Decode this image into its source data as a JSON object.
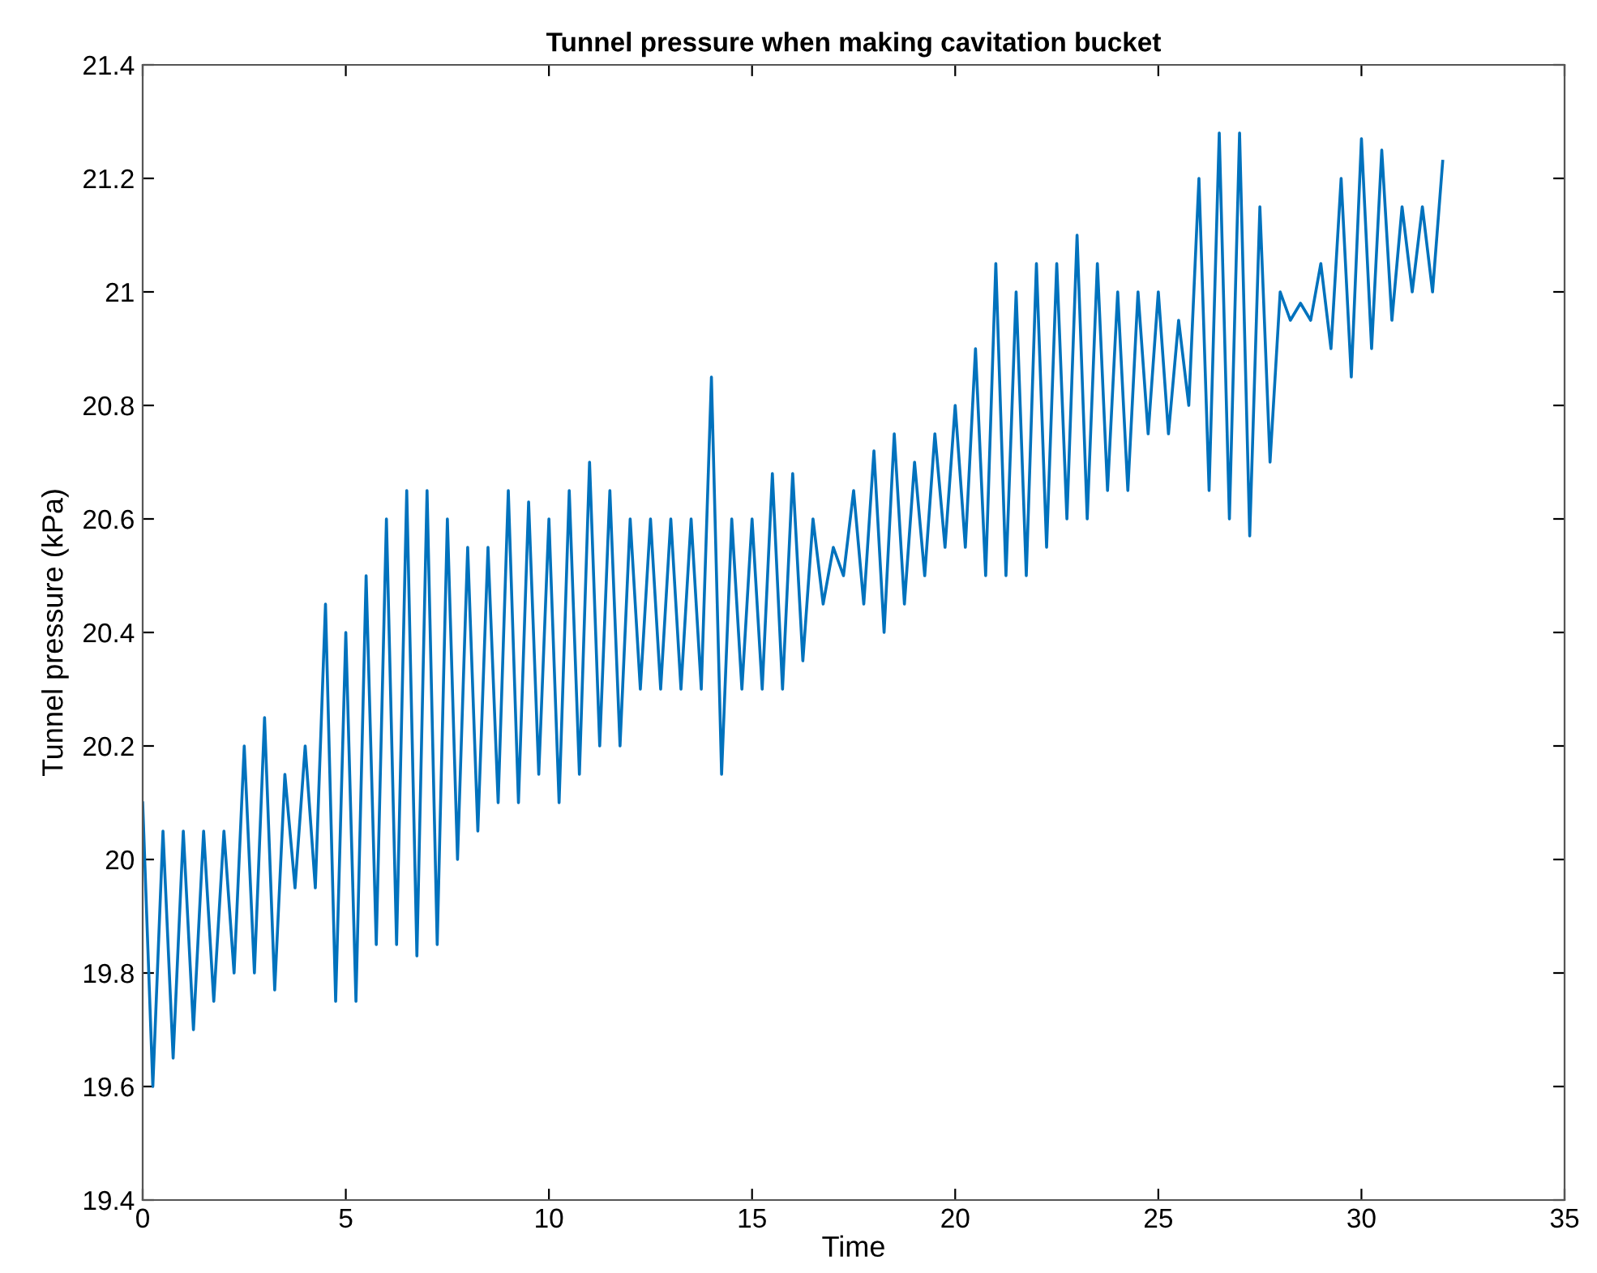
{
  "chart_data": {
    "type": "line",
    "title": "Tunnel pressure when making cavitation bucket",
    "xlabel": "Time",
    "ylabel": "Tunnel pressure (kPa)",
    "xlim": [
      0,
      35
    ],
    "xticks": [
      0,
      5,
      10,
      15,
      20,
      25,
      30,
      35
    ],
    "ylim": [
      19.4,
      21.4
    ],
    "yticks": [
      19.4,
      19.6,
      19.8,
      20,
      20.2,
      20.4,
      20.6,
      20.8,
      21,
      21.2,
      21.4
    ],
    "grid": false,
    "marker": "none",
    "line_style": "solid",
    "series": [
      {
        "color": "#0072bd",
        "x": [
          0,
          0.25,
          0.5,
          0.75,
          1,
          1.25,
          1.5,
          1.75,
          2,
          2.25,
          2.5,
          2.75,
          3,
          3.25,
          3.5,
          3.75,
          4,
          4.25,
          4.5,
          4.75,
          5,
          5.25,
          5.5,
          5.75,
          6,
          6.25,
          6.5,
          6.75,
          7,
          7.25,
          7.5,
          7.75,
          8,
          8.25,
          8.5,
          8.75,
          9,
          9.25,
          9.5,
          9.75,
          10,
          10.25,
          10.5,
          10.75,
          11,
          11.25,
          11.5,
          11.75,
          12,
          12.25,
          12.5,
          12.75,
          13,
          13.25,
          13.5,
          13.75,
          14,
          14.25,
          14.5,
          14.75,
          15,
          15.25,
          15.5,
          15.75,
          16,
          16.25,
          16.5,
          16.75,
          17,
          17.25,
          17.5,
          17.75,
          18,
          18.25,
          18.5,
          18.75,
          19,
          19.25,
          19.5,
          19.75,
          20,
          20.25,
          20.5,
          20.75,
          21,
          21.25,
          21.5,
          21.75,
          22,
          22.25,
          22.5,
          22.75,
          23,
          23.25,
          23.5,
          23.75,
          24,
          24.25,
          24.5,
          24.75,
          25,
          25.25,
          25.5,
          25.75,
          26,
          26.25,
          26.5,
          26.75,
          27,
          27.25,
          27.5,
          27.75,
          28,
          28.25,
          28.5,
          28.75,
          29,
          29.25,
          29.5,
          29.75,
          30,
          30.25,
          30.5,
          30.75,
          31,
          31.25,
          31.5,
          31.75,
          32
        ],
        "values": [
          20.1,
          19.6,
          20.05,
          19.65,
          20.05,
          19.7,
          20.05,
          19.75,
          20.05,
          19.8,
          20.2,
          19.8,
          20.25,
          19.77,
          20.15,
          19.95,
          20.2,
          19.95,
          20.45,
          19.75,
          20.4,
          19.75,
          20.5,
          19.85,
          20.6,
          19.85,
          20.65,
          19.83,
          20.65,
          19.85,
          20.6,
          20.0,
          20.55,
          20.05,
          20.55,
          20.1,
          20.65,
          20.1,
          20.63,
          20.15,
          20.6,
          20.1,
          20.65,
          20.15,
          20.7,
          20.2,
          20.65,
          20.2,
          20.6,
          20.3,
          20.6,
          20.3,
          20.6,
          20.3,
          20.6,
          20.3,
          20.85,
          20.15,
          20.6,
          20.3,
          20.6,
          20.3,
          20.68,
          20.3,
          20.68,
          20.35,
          20.6,
          20.45,
          20.55,
          20.5,
          20.65,
          20.45,
          20.72,
          20.4,
          20.75,
          20.45,
          20.7,
          20.5,
          20.75,
          20.55,
          20.8,
          20.55,
          20.9,
          20.5,
          21.05,
          20.5,
          21.0,
          20.5,
          21.05,
          20.55,
          21.05,
          20.6,
          21.1,
          20.6,
          21.05,
          20.65,
          21.0,
          20.65,
          21.0,
          20.75,
          21.0,
          20.75,
          20.95,
          20.8,
          21.2,
          20.65,
          21.28,
          20.6,
          21.28,
          20.57,
          21.15,
          20.7,
          21.0,
          20.95,
          20.98,
          20.95,
          21.05,
          20.9,
          21.2,
          20.85,
          21.27,
          20.9,
          21.25,
          20.95,
          21.15,
          21.0,
          21.15,
          21.0,
          21.23
        ]
      }
    ]
  }
}
